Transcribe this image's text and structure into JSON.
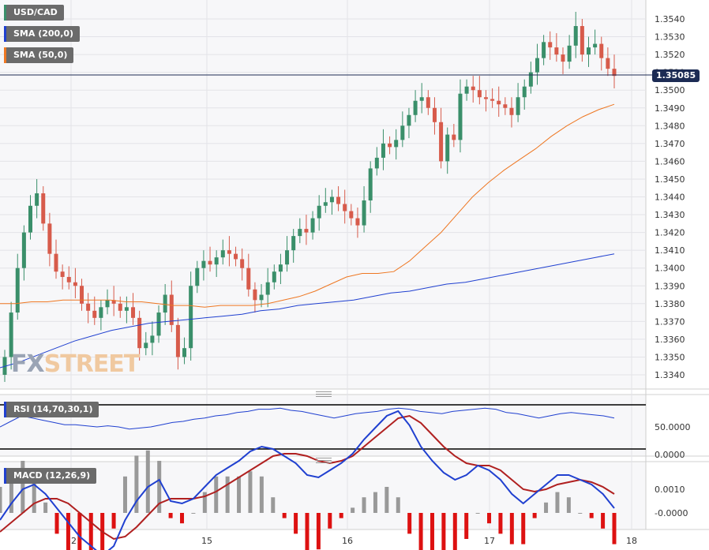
{
  "chart_data": {
    "type": "candlestick",
    "main": {
      "symbol_label": "USD/CAD",
      "sma200_label": "SMA (200,0)",
      "sma50_label": "SMA (50,0)",
      "current_price": "1.35085",
      "y_ticks": [
        "1.3540",
        "1.3530",
        "1.3520",
        "1.3510",
        "1.3500",
        "1.3490",
        "1.3480",
        "1.3470",
        "1.3460",
        "1.3450",
        "1.3440",
        "1.3430",
        "1.3420",
        "1.3410",
        "1.3400",
        "1.3390",
        "1.3380",
        "1.3370",
        "1.3360",
        "1.3350",
        "1.3340"
      ],
      "ylim": [
        1.3335,
        1.3545
      ],
      "x_ticks": [
        "12",
        "15",
        "16",
        "17",
        "18"
      ],
      "candles_close": [
        1.335,
        1.3375,
        1.34,
        1.342,
        1.3435,
        1.3442,
        1.3425,
        1.3408,
        1.3398,
        1.3395,
        1.3392,
        1.339,
        1.338,
        1.3376,
        1.3372,
        1.3378,
        1.3382,
        1.338,
        1.3376,
        1.3378,
        1.3372,
        1.3355,
        1.3358,
        1.3362,
        1.3375,
        1.3385,
        1.3368,
        1.335,
        1.3355,
        1.339,
        1.34,
        1.3404,
        1.3402,
        1.3406,
        1.341,
        1.3408,
        1.3405,
        1.34,
        1.3388,
        1.3382,
        1.3385,
        1.3392,
        1.3398,
        1.3402,
        1.341,
        1.3418,
        1.3422,
        1.342,
        1.3428,
        1.3435,
        1.3437,
        1.344,
        1.3436,
        1.3432,
        1.3428,
        1.3424,
        1.3438,
        1.3456,
        1.3462,
        1.347,
        1.3468,
        1.3472,
        1.348,
        1.3486,
        1.3494,
        1.3496,
        1.349,
        1.3482,
        1.346,
        1.3475,
        1.3472,
        1.3498,
        1.3502,
        1.35,
        1.3496,
        1.3495,
        1.3494,
        1.3492,
        1.349,
        1.3486,
        1.3496,
        1.3502,
        1.351,
        1.3518,
        1.3527,
        1.3524,
        1.352,
        1.3516,
        1.3525,
        1.3536,
        1.352,
        1.3524,
        1.3526,
        1.3518,
        1.3512,
        1.3508
      ],
      "sma50": [
        1.338,
        1.338,
        1.3381,
        1.3381,
        1.3382,
        1.3382,
        1.3382,
        1.3382,
        1.3381,
        1.3381,
        1.338,
        1.3379,
        1.3379,
        1.3378,
        1.3379,
        1.3379,
        1.3379,
        1.338,
        1.3382,
        1.3384,
        1.3387,
        1.3391,
        1.3395,
        1.3397,
        1.3397,
        1.3398,
        1.3404,
        1.3412,
        1.342,
        1.343,
        1.344,
        1.3448,
        1.3455,
        1.3461,
        1.3467,
        1.3474,
        1.348,
        1.3485,
        1.3489,
        1.3492
      ],
      "sma200": [
        1.3344,
        1.3347,
        1.3351,
        1.3355,
        1.3359,
        1.3362,
        1.3365,
        1.3367,
        1.3369,
        1.337,
        1.3371,
        1.3372,
        1.3373,
        1.3374,
        1.3376,
        1.3377,
        1.3379,
        1.338,
        1.3381,
        1.3382,
        1.3384,
        1.3386,
        1.3387,
        1.3389,
        1.3391,
        1.3392,
        1.3394,
        1.3396,
        1.3398,
        1.34,
        1.3402,
        1.3404,
        1.3406,
        1.3408
      ],
      "colors": {
        "up": "#3a8f6a",
        "down": "#d75b4b",
        "sma200": "#2040d0",
        "sma50": "#ee7722",
        "price_line": "#1c2b54"
      }
    },
    "rsi": {
      "label": "RSI (14,70,30,1)",
      "y_ticks": [
        "50.0000",
        "0.0000"
      ],
      "levels": [
        70,
        30
      ],
      "values": [
        50,
        55,
        60,
        58,
        56,
        54,
        52,
        52,
        51,
        50,
        51,
        50,
        48,
        49,
        50,
        52,
        54,
        55,
        57,
        58,
        60,
        61,
        63,
        64,
        66,
        66,
        67,
        65,
        64,
        62,
        60,
        58,
        60,
        62,
        63,
        64,
        66,
        67,
        66,
        64,
        63,
        62,
        64,
        65,
        66,
        67,
        66,
        63,
        62,
        60,
        58,
        60,
        62,
        63,
        62,
        61,
        60,
        58
      ],
      "color": "#2040d0"
    },
    "macd": {
      "label": "MACD (12,26,9)",
      "y_ticks": [
        "0.0010",
        "-0.0000"
      ],
      "macd_line": [
        -0.0003,
        0.0004,
        0.001,
        0.0012,
        0.0008,
        0.0002,
        -0.0004,
        -0.001,
        -0.0014,
        -0.0018,
        -0.0014,
        -0.0003,
        0.0005,
        0.0011,
        0.0014,
        0.0005,
        0.0004,
        0.0006,
        0.0011,
        0.0016,
        0.0019,
        0.0022,
        0.0026,
        0.0028,
        0.0027,
        0.0024,
        0.0021,
        0.0016,
        0.0015,
        0.0018,
        0.0021,
        0.0025,
        0.0031,
        0.0036,
        0.0041,
        0.0043,
        0.0037,
        0.0028,
        0.0022,
        0.0017,
        0.0014,
        0.0016,
        0.002,
        0.0018,
        0.0014,
        0.0008,
        0.0004,
        0.0008,
        0.0012,
        0.0016,
        0.0016,
        0.0014,
        0.0012,
        0.0008,
        0.0002
      ],
      "signal_line": [
        -0.0008,
        -0.0004,
        0.0,
        0.0004,
        0.0006,
        0.0006,
        0.0004,
        0.0,
        -0.0004,
        -0.0008,
        -0.0011,
        -0.001,
        -0.0006,
        -0.0001,
        0.0004,
        0.0006,
        0.0006,
        0.0006,
        0.0007,
        0.0009,
        0.0012,
        0.0015,
        0.0018,
        0.0021,
        0.0024,
        0.0025,
        0.0025,
        0.0024,
        0.0022,
        0.0021,
        0.0022,
        0.0024,
        0.0028,
        0.0032,
        0.0036,
        0.004,
        0.0041,
        0.0038,
        0.0033,
        0.0028,
        0.0024,
        0.0021,
        0.002,
        0.002,
        0.0018,
        0.0014,
        0.001,
        0.0009,
        0.001,
        0.0012,
        0.0013,
        0.0014,
        0.0013,
        0.0011,
        0.0008
      ],
      "colors": {
        "macd": "#2040d0",
        "signal": "#b02020",
        "hist_pos": "#999999",
        "hist_neg": "#dd1111"
      }
    },
    "watermark": {
      "part1": "FX",
      "part2": "STREET"
    },
    "grid": true
  }
}
